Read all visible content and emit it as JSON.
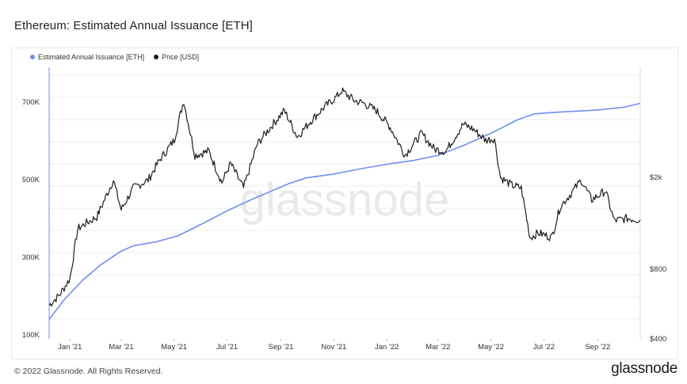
{
  "title": "Ethereum: Estimated Annual Issuance [ETH]",
  "footer": "© 2022 Glassnode. All Rights Reserved.",
  "brand": "glassnode",
  "watermark": "glassnode",
  "colors": {
    "issuance": "#6f8ef0",
    "price": "#1e1e1e",
    "grid": "#eeeeee"
  },
  "chart_data": {
    "type": "line",
    "title": "Ethereum: Estimated Annual Issuance [ETH]",
    "x_start": "2020-12-08",
    "x_end": "2022-10-20",
    "x_ticks": [
      "Jan '21",
      "Mar '21",
      "May '21",
      "Jul '21",
      "Sep '21",
      "Nov '21",
      "Jan '22",
      "Mar '22",
      "May '22",
      "Jul '22",
      "Sep '22"
    ],
    "y_left": {
      "ticks": [
        "100K",
        "300K",
        "500K",
        "700K"
      ],
      "tick_values": [
        100000,
        300000,
        500000,
        700000
      ],
      "range": [
        90000,
        790000
      ]
    },
    "y_right": {
      "scale": "log",
      "ticks": [
        "$400",
        "$800",
        "$2k"
      ],
      "tick_values": [
        400,
        800,
        2000
      ],
      "range": [
        400,
        6000
      ]
    },
    "legend": {
      "position": "top-left"
    },
    "grid": true,
    "series": [
      {
        "name": "Estimated Annual Issuance [ETH]",
        "axis": "left",
        "points": [
          [
            "2020-12-08",
            140000
          ],
          [
            "2020-12-25",
            190000
          ],
          [
            "2021-01-15",
            240000
          ],
          [
            "2021-02-05",
            280000
          ],
          [
            "2021-02-28",
            315000
          ],
          [
            "2021-03-15",
            330000
          ],
          [
            "2021-04-10",
            340000
          ],
          [
            "2021-05-05",
            355000
          ],
          [
            "2021-06-01",
            385000
          ],
          [
            "2021-07-01",
            420000
          ],
          [
            "2021-08-01",
            452000
          ],
          [
            "2021-08-20",
            470000
          ],
          [
            "2021-09-10",
            490000
          ],
          [
            "2021-09-30",
            505000
          ],
          [
            "2021-11-01",
            515000
          ],
          [
            "2021-12-01",
            528000
          ],
          [
            "2022-01-01",
            540000
          ],
          [
            "2022-02-01",
            550000
          ],
          [
            "2022-03-01",
            563000
          ],
          [
            "2022-04-01",
            590000
          ],
          [
            "2022-05-01",
            620000
          ],
          [
            "2022-06-01",
            655000
          ],
          [
            "2022-06-20",
            670000
          ],
          [
            "2022-07-15",
            674000
          ],
          [
            "2022-09-01",
            680000
          ],
          [
            "2022-10-01",
            687000
          ],
          [
            "2022-10-20",
            697000
          ]
        ]
      },
      {
        "name": "Price [USD]",
        "axis": "right",
        "points": [
          [
            "2020-12-08",
            560
          ],
          [
            "2020-12-20",
            620
          ],
          [
            "2021-01-01",
            730
          ],
          [
            "2021-01-10",
            1200
          ],
          [
            "2021-01-20",
            1270
          ],
          [
            "2021-02-01",
            1350
          ],
          [
            "2021-02-20",
            1950
          ],
          [
            "2021-03-01",
            1450
          ],
          [
            "2021-03-15",
            1800
          ],
          [
            "2021-04-01",
            1950
          ],
          [
            "2021-04-15",
            2400
          ],
          [
            "2021-05-01",
            2900
          ],
          [
            "2021-05-12",
            4300
          ],
          [
            "2021-05-25",
            2500
          ],
          [
            "2021-06-10",
            2600
          ],
          [
            "2021-06-25",
            1900
          ],
          [
            "2021-07-05",
            2300
          ],
          [
            "2021-07-20",
            1800
          ],
          [
            "2021-08-05",
            2800
          ],
          [
            "2021-08-20",
            3300
          ],
          [
            "2021-09-05",
            3900
          ],
          [
            "2021-09-20",
            3000
          ],
          [
            "2021-10-05",
            3500
          ],
          [
            "2021-10-20",
            4000
          ],
          [
            "2021-11-05",
            4500
          ],
          [
            "2021-11-10",
            4750
          ],
          [
            "2021-11-25",
            4300
          ],
          [
            "2021-12-05",
            4200
          ],
          [
            "2021-12-20",
            3900
          ],
          [
            "2022-01-05",
            3300
          ],
          [
            "2022-01-22",
            2500
          ],
          [
            "2022-02-10",
            3100
          ],
          [
            "2022-02-25",
            2650
          ],
          [
            "2022-03-10",
            2600
          ],
          [
            "2022-03-30",
            3400
          ],
          [
            "2022-04-10",
            3250
          ],
          [
            "2022-04-25",
            2900
          ],
          [
            "2022-05-05",
            2950
          ],
          [
            "2022-05-12",
            2000
          ],
          [
            "2022-05-25",
            1850
          ],
          [
            "2022-06-05",
            1800
          ],
          [
            "2022-06-15",
            1100
          ],
          [
            "2022-06-25",
            1150
          ],
          [
            "2022-07-10",
            1100
          ],
          [
            "2022-07-20",
            1500
          ],
          [
            "2022-08-01",
            1700
          ],
          [
            "2022-08-13",
            1950
          ],
          [
            "2022-08-25",
            1600
          ],
          [
            "2022-09-10",
            1750
          ],
          [
            "2022-09-20",
            1300
          ],
          [
            "2022-10-05",
            1330
          ],
          [
            "2022-10-20",
            1310
          ]
        ]
      }
    ]
  }
}
